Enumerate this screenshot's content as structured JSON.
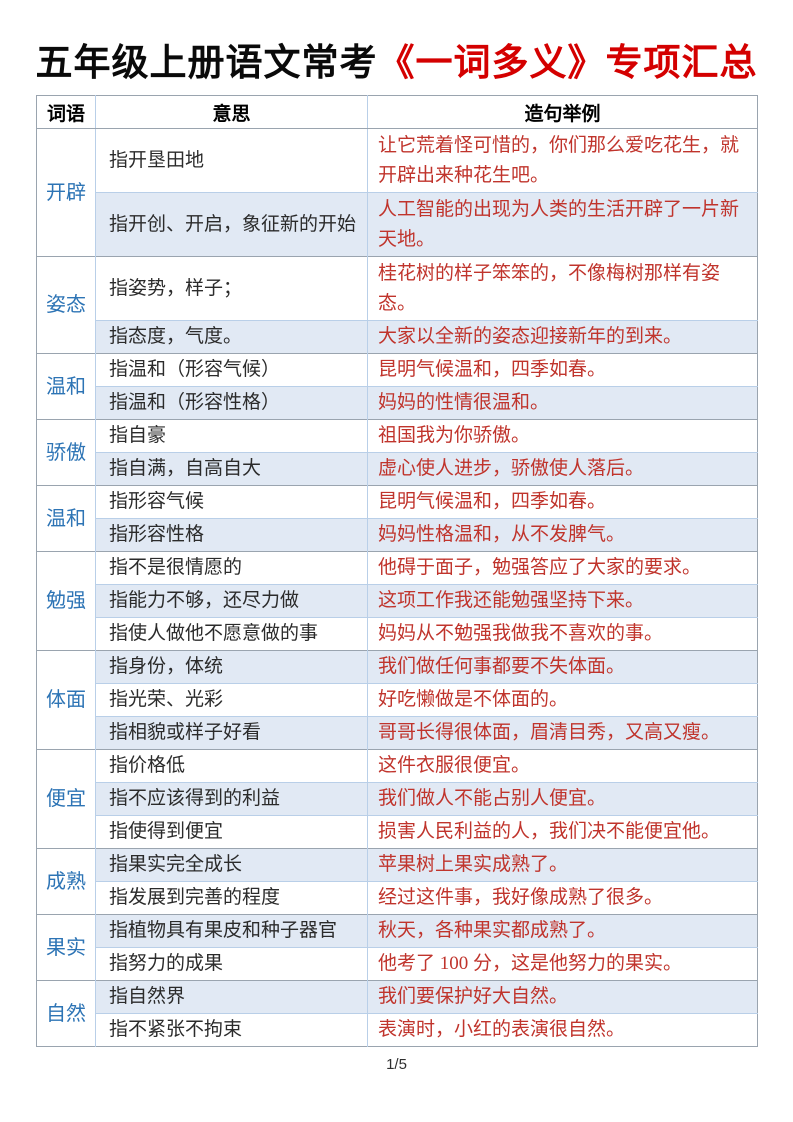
{
  "page": {
    "title_black": "五年级上册语文常考",
    "title_red": "《一词多义》专项汇总",
    "footer": "1/5"
  },
  "colors": {
    "word_text": "#2d74b5",
    "example_text": "#c0342c",
    "title_accent": "#d40000",
    "band_row": "#e1e9f4",
    "grid_inner": "#b9cfe8",
    "grid_outer": "#9aa4af"
  },
  "table": {
    "headers": [
      "词语",
      "意思",
      "造句举例"
    ],
    "groups": [
      {
        "word": "开辟",
        "rows": [
          {
            "meaning": "指开垦田地",
            "example": "让它荒着怪可惜的，你们那么爱吃花生，就开辟出来种花生吧。"
          },
          {
            "meaning": "指开创、开启，象征新的开始",
            "example": "人工智能的出现为人类的生活开辟了一片新天地。"
          }
        ]
      },
      {
        "word": "姿态",
        "rows": [
          {
            "meaning": "指姿势，样子；",
            "example": "桂花树的样子笨笨的，不像梅树那样有姿态。"
          },
          {
            "meaning": "指态度，气度。",
            "example": "大家以全新的姿态迎接新年的到来。"
          }
        ]
      },
      {
        "word": "温和",
        "rows": [
          {
            "meaning": "指温和（形容气候）",
            "example": "昆明气候温和，四季如春。"
          },
          {
            "meaning": "指温和（形容性格）",
            "example": "妈妈的性情很温和。"
          }
        ]
      },
      {
        "word": "骄傲",
        "rows": [
          {
            "meaning": "指自豪",
            "example": "祖国我为你骄傲。"
          },
          {
            "meaning": "指自满，自高自大",
            "example": "虚心使人进步，骄傲使人落后。"
          }
        ]
      },
      {
        "word": "温和",
        "rows": [
          {
            "meaning": "指形容气候",
            "example": "昆明气候温和，四季如春。"
          },
          {
            "meaning": "指形容性格",
            "example": "妈妈性格温和，从不发脾气。"
          }
        ]
      },
      {
        "word": "勉强",
        "rows": [
          {
            "meaning": "指不是很情愿的",
            "example": "他碍于面子，勉强答应了大家的要求。"
          },
          {
            "meaning": "指能力不够，还尽力做",
            "example": "这项工作我还能勉强坚持下来。"
          },
          {
            "meaning": "指使人做他不愿意做的事",
            "example": "妈妈从不勉强我做我不喜欢的事。"
          }
        ]
      },
      {
        "word": "体面",
        "rows": [
          {
            "meaning": "指身份，体统",
            "example": "我们做任何事都要不失体面。"
          },
          {
            "meaning": "指光荣、光彩",
            "example": "好吃懒做是不体面的。"
          },
          {
            "meaning": "指相貌或样子好看",
            "example": "哥哥长得很体面，眉清目秀，又高又瘦。"
          }
        ]
      },
      {
        "word": "便宜",
        "rows": [
          {
            "meaning": "指价格低",
            "example": "这件衣服很便宜。"
          },
          {
            "meaning": "指不应该得到的利益",
            "example": "我们做人不能占别人便宜。"
          },
          {
            "meaning": "指使得到便宜",
            "example": "损害人民利益的人，我们决不能便宜他。"
          }
        ]
      },
      {
        "word": "成熟",
        "rows": [
          {
            "meaning": "指果实完全成长",
            "example": "苹果树上果实成熟了。"
          },
          {
            "meaning": "指发展到完善的程度",
            "example": "经过这件事，我好像成熟了很多。"
          }
        ]
      },
      {
        "word": "果实",
        "rows": [
          {
            "meaning": "指植物具有果皮和种子器官",
            "example": "秋天，各种果实都成熟了。"
          },
          {
            "meaning": "指努力的成果",
            "example": "他考了 100 分，这是他努力的果实。"
          }
        ]
      },
      {
        "word": "自然",
        "rows": [
          {
            "meaning": "指自然界",
            "example": "我们要保护好大自然。"
          },
          {
            "meaning": "指不紧张不拘束",
            "example": "表演时，小红的表演很自然。"
          }
        ]
      }
    ]
  }
}
